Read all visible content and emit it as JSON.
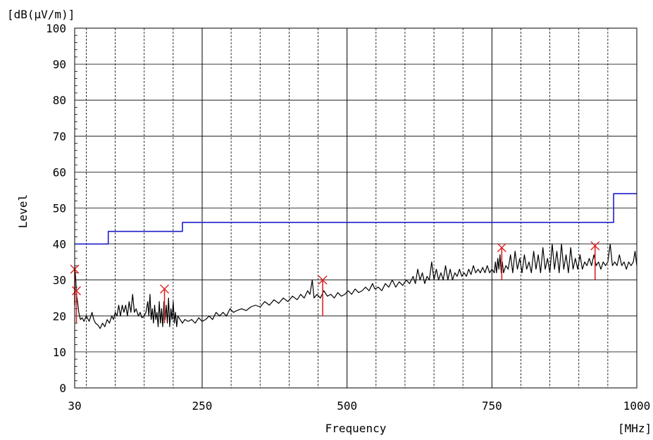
{
  "chart_data": {
    "type": "line",
    "unit_label": "[dB(μV/m)]",
    "ylabel": "Level",
    "xlabel": "Frequency",
    "x_unit_label": "[MHz]",
    "xlim": [
      30,
      1000
    ],
    "ylim": [
      0,
      100
    ],
    "x_ticks": [
      30,
      250,
      500,
      750,
      1000
    ],
    "y_ticks": [
      0,
      10,
      20,
      30,
      40,
      50,
      60,
      70,
      80,
      90,
      100
    ],
    "grid": true,
    "colors": {
      "limit": "#1f1fc8",
      "trace": "#000000",
      "marker": "#e02020",
      "grid": "#000000"
    },
    "series": [
      {
        "key": "limit",
        "style": "step",
        "color": "#1f1fc8",
        "points": [
          [
            30,
            40
          ],
          [
            88,
            40
          ],
          [
            88,
            43.5
          ],
          [
            216,
            43.5
          ],
          [
            216,
            46
          ],
          [
            960,
            46
          ],
          [
            960,
            54
          ],
          [
            1000,
            54
          ]
        ]
      },
      {
        "key": "trace",
        "style": "line",
        "color": "#000000",
        "points": [
          [
            30,
            34
          ],
          [
            32,
            30
          ],
          [
            33,
            26
          ],
          [
            35,
            24
          ],
          [
            37,
            21
          ],
          [
            40,
            19
          ],
          [
            43,
            19.5
          ],
          [
            46,
            18.5
          ],
          [
            50,
            20
          ],
          [
            55,
            18.5
          ],
          [
            60,
            21
          ],
          [
            63,
            19
          ],
          [
            66,
            18
          ],
          [
            70,
            17.5
          ],
          [
            74,
            16.5
          ],
          [
            78,
            18
          ],
          [
            82,
            17
          ],
          [
            86,
            19
          ],
          [
            90,
            18
          ],
          [
            94,
            20
          ],
          [
            97,
            19
          ],
          [
            100,
            21
          ],
          [
            103,
            20
          ],
          [
            106,
            23
          ],
          [
            109,
            20
          ],
          [
            112,
            23
          ],
          [
            115,
            21
          ],
          [
            118,
            23
          ],
          [
            121,
            20
          ],
          [
            124,
            24
          ],
          [
            127,
            21
          ],
          [
            130,
            26
          ],
          [
            133,
            21
          ],
          [
            136,
            22
          ],
          [
            140,
            20
          ],
          [
            143,
            21
          ],
          [
            146,
            19.5
          ],
          [
            150,
            20
          ],
          [
            153,
            21
          ],
          [
            156,
            24
          ],
          [
            158,
            20
          ],
          [
            160,
            26
          ],
          [
            162,
            19
          ],
          [
            164,
            22
          ],
          [
            166,
            18
          ],
          [
            168,
            23
          ],
          [
            170,
            19
          ],
          [
            172,
            21
          ],
          [
            174,
            17
          ],
          [
            176,
            24
          ],
          [
            178,
            18
          ],
          [
            180,
            22
          ],
          [
            182,
            17
          ],
          [
            184,
            24
          ],
          [
            186,
            19
          ],
          [
            188,
            23
          ],
          [
            190,
            18
          ],
          [
            192,
            25
          ],
          [
            194,
            17
          ],
          [
            196,
            22
          ],
          [
            198,
            19
          ],
          [
            200,
            24
          ],
          [
            202,
            18
          ],
          [
            204,
            21
          ],
          [
            206,
            17
          ],
          [
            208,
            20
          ],
          [
            212,
            19
          ],
          [
            216,
            18
          ],
          [
            220,
            19
          ],
          [
            226,
            18.5
          ],
          [
            232,
            19
          ],
          [
            238,
            18
          ],
          [
            244,
            19.5
          ],
          [
            250,
            18.5
          ],
          [
            256,
            19
          ],
          [
            262,
            20
          ],
          [
            268,
            19
          ],
          [
            274,
            21
          ],
          [
            280,
            20
          ],
          [
            286,
            21
          ],
          [
            292,
            20
          ],
          [
            298,
            22
          ],
          [
            304,
            21
          ],
          [
            310,
            21.5
          ],
          [
            318,
            22
          ],
          [
            326,
            21.5
          ],
          [
            334,
            22.5
          ],
          [
            342,
            23
          ],
          [
            350,
            22.5
          ],
          [
            358,
            24
          ],
          [
            366,
            23
          ],
          [
            374,
            24.5
          ],
          [
            382,
            23.5
          ],
          [
            390,
            25
          ],
          [
            398,
            24
          ],
          [
            406,
            25.5
          ],
          [
            414,
            24.5
          ],
          [
            420,
            26
          ],
          [
            426,
            25
          ],
          [
            432,
            27
          ],
          [
            436,
            26
          ],
          [
            440,
            30
          ],
          [
            443,
            25
          ],
          [
            448,
            26
          ],
          [
            454,
            25
          ],
          [
            460,
            27
          ],
          [
            466,
            25.5
          ],
          [
            472,
            26
          ],
          [
            478,
            25
          ],
          [
            484,
            26.5
          ],
          [
            490,
            25.5
          ],
          [
            496,
            26
          ],
          [
            502,
            27
          ],
          [
            508,
            26
          ],
          [
            514,
            27.5
          ],
          [
            520,
            26.5
          ],
          [
            526,
            27
          ],
          [
            532,
            28
          ],
          [
            538,
            27
          ],
          [
            544,
            29
          ],
          [
            548,
            27.5
          ],
          [
            554,
            28
          ],
          [
            560,
            27
          ],
          [
            566,
            29
          ],
          [
            572,
            28
          ],
          [
            578,
            30
          ],
          [
            584,
            28
          ],
          [
            590,
            29.5
          ],
          [
            596,
            28.5
          ],
          [
            602,
            30
          ],
          [
            608,
            29
          ],
          [
            614,
            31
          ],
          [
            618,
            29
          ],
          [
            622,
            33
          ],
          [
            626,
            30
          ],
          [
            630,
            32
          ],
          [
            634,
            29
          ],
          [
            638,
            31
          ],
          [
            642,
            30
          ],
          [
            646,
            35
          ],
          [
            650,
            30
          ],
          [
            654,
            33
          ],
          [
            658,
            30
          ],
          [
            662,
            32
          ],
          [
            666,
            30
          ],
          [
            670,
            34
          ],
          [
            674,
            30
          ],
          [
            678,
            33
          ],
          [
            682,
            30
          ],
          [
            686,
            32
          ],
          [
            690,
            31
          ],
          [
            694,
            33
          ],
          [
            698,
            31
          ],
          [
            702,
            32
          ],
          [
            706,
            31
          ],
          [
            710,
            33
          ],
          [
            714,
            31.5
          ],
          [
            718,
            34
          ],
          [
            722,
            32
          ],
          [
            726,
            33
          ],
          [
            730,
            32
          ],
          [
            734,
            33.5
          ],
          [
            738,
            32
          ],
          [
            742,
            34
          ],
          [
            746,
            32
          ],
          [
            750,
            33
          ],
          [
            754,
            32
          ],
          [
            756,
            35
          ],
          [
            758,
            32
          ],
          [
            760,
            36
          ],
          [
            762,
            33
          ],
          [
            764,
            37
          ],
          [
            766,
            32
          ],
          [
            768,
            35
          ],
          [
            770,
            32
          ],
          [
            774,
            34
          ],
          [
            778,
            33
          ],
          [
            782,
            37
          ],
          [
            786,
            32
          ],
          [
            790,
            38
          ],
          [
            794,
            33
          ],
          [
            798,
            36
          ],
          [
            802,
            32
          ],
          [
            806,
            37
          ],
          [
            810,
            33
          ],
          [
            814,
            35
          ],
          [
            818,
            32
          ],
          [
            822,
            38
          ],
          [
            826,
            33
          ],
          [
            830,
            37
          ],
          [
            834,
            32
          ],
          [
            838,
            39
          ],
          [
            842,
            33
          ],
          [
            846,
            36
          ],
          [
            850,
            32
          ],
          [
            854,
            40
          ],
          [
            858,
            33
          ],
          [
            862,
            38
          ],
          [
            866,
            32
          ],
          [
            870,
            40
          ],
          [
            874,
            33
          ],
          [
            878,
            37
          ],
          [
            882,
            32
          ],
          [
            886,
            39
          ],
          [
            890,
            33
          ],
          [
            894,
            36
          ],
          [
            898,
            33
          ],
          [
            902,
            37
          ],
          [
            906,
            33
          ],
          [
            910,
            35
          ],
          [
            914,
            34
          ],
          [
            918,
            36
          ],
          [
            922,
            34
          ],
          [
            926,
            37
          ],
          [
            930,
            34
          ],
          [
            934,
            35
          ],
          [
            938,
            33
          ],
          [
            942,
            35
          ],
          [
            946,
            34
          ],
          [
            950,
            35
          ],
          [
            954,
            40
          ],
          [
            958,
            34
          ],
          [
            962,
            35
          ],
          [
            966,
            34
          ],
          [
            970,
            37
          ],
          [
            974,
            34
          ],
          [
            978,
            35
          ],
          [
            982,
            33
          ],
          [
            986,
            35
          ],
          [
            990,
            34
          ],
          [
            994,
            35
          ],
          [
            997,
            38
          ],
          [
            1000,
            34
          ]
        ]
      }
    ],
    "markers": [
      {
        "x": 30,
        "top": 33,
        "base": 23
      },
      {
        "x": 33,
        "top": 27,
        "base": 18
      },
      {
        "x": 185,
        "top": 27.5,
        "base": 18
      },
      {
        "x": 458,
        "top": 30,
        "base": 20
      },
      {
        "x": 767,
        "top": 39,
        "base": 30
      },
      {
        "x": 928,
        "top": 39.5,
        "base": 30
      }
    ]
  }
}
